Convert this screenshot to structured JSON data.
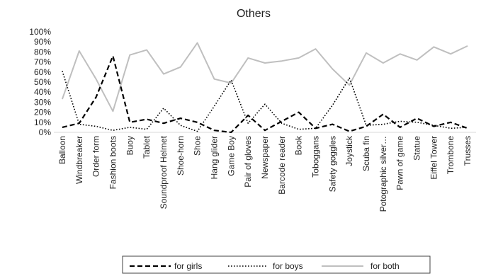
{
  "chart_data": {
    "type": "line",
    "title": "Others",
    "xlabel": "",
    "ylabel": "",
    "ylim": [
      0,
      100
    ],
    "yticks": [
      "0%",
      "10%",
      "20%",
      "30%",
      "40%",
      "50%",
      "60%",
      "70%",
      "80%",
      "90%",
      "100%"
    ],
    "grid": false,
    "legend_position": "bottom",
    "categories": [
      "Balloon",
      "Windbreaker",
      "Order form",
      "Fashion boots",
      "Buoy",
      "Tablet",
      "Soundproof Helmet",
      "Shoe-horn",
      "Shoe",
      "Hang glider",
      "Game Boy",
      "Pair of gloves",
      "Newspaper",
      "Barcode reader",
      "Book",
      "Toboggans",
      "Safety goggles",
      "Joystick",
      "Scuba fin",
      "Potographic silver…",
      "Pawn of game",
      "Statue",
      "Eiffel Tower",
      "Trombone",
      "Trusses"
    ],
    "series": [
      {
        "name": "for girls",
        "style": "dashed",
        "color": "#000000",
        "values": [
          5,
          9,
          35,
          76,
          10,
          13,
          9,
          14,
          10,
          2,
          0,
          17,
          2,
          11,
          20,
          4,
          8,
          1,
          6,
          18,
          5,
          14,
          6,
          10,
          4
        ]
      },
      {
        "name": "for boys",
        "style": "dotted",
        "color": "#000000",
        "values": [
          61,
          8,
          6,
          2,
          5,
          3,
          24,
          7,
          1,
          26,
          52,
          9,
          28,
          9,
          3,
          4,
          27,
          54,
          7,
          8,
          11,
          10,
          7,
          4,
          5
        ]
      },
      {
        "name": "for both",
        "style": "solid",
        "color": "#bfbfbf",
        "values": [
          33,
          81,
          53,
          21,
          77,
          82,
          58,
          65,
          89,
          53,
          49,
          74,
          69,
          71,
          74,
          83,
          63,
          47,
          79,
          69,
          78,
          72,
          85,
          78,
          86
        ]
      }
    ]
  }
}
